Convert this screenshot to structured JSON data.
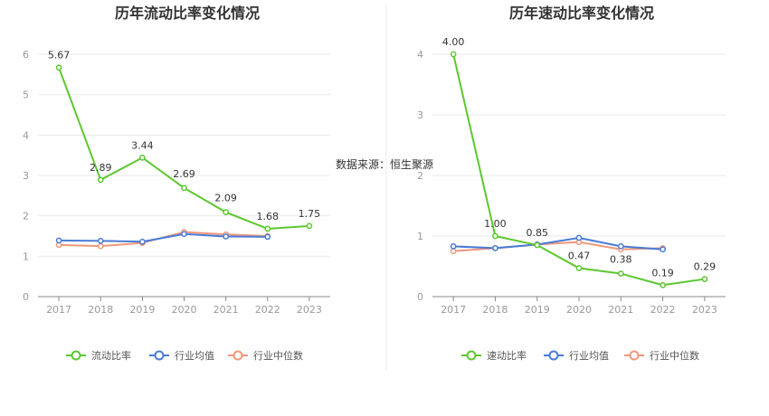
{
  "source_text": "数据来源：恒生聚源",
  "chart_data": [
    {
      "type": "line",
      "title": "历年流动比率变化情况",
      "categories": [
        "2017",
        "2018",
        "2019",
        "2020",
        "2021",
        "2022",
        "2023"
      ],
      "ylim": [
        0,
        6
      ],
      "yticks": [
        "0",
        "1",
        "2",
        "3",
        "4",
        "5",
        "6"
      ],
      "grid": true,
      "legend_position": "bottom",
      "series": [
        {
          "name": "流动比率",
          "color": "#5dc730",
          "values": [
            5.67,
            2.89,
            3.44,
            2.69,
            2.09,
            1.68,
            1.75
          ],
          "labels": [
            "5.67",
            "2.89",
            "3.44",
            "2.69",
            "2.09",
            "1.68",
            "1.75"
          ]
        },
        {
          "name": "行业均值",
          "color": "#4a7bd8",
          "values": [
            1.39,
            1.38,
            1.36,
            1.55,
            1.49,
            1.48,
            null
          ]
        },
        {
          "name": "行业中位数",
          "color": "#f0977a",
          "values": [
            1.28,
            1.25,
            1.33,
            1.6,
            1.54,
            1.5,
            null
          ]
        }
      ]
    },
    {
      "type": "line",
      "title": "历年速动比率变化情况",
      "categories": [
        "2017",
        "2018",
        "2019",
        "2020",
        "2021",
        "2022",
        "2023"
      ],
      "ylim": [
        0,
        4
      ],
      "yticks": [
        "0",
        "1",
        "2",
        "3",
        "4"
      ],
      "grid": true,
      "legend_position": "bottom",
      "series": [
        {
          "name": "速动比率",
          "color": "#5dc730",
          "values": [
            4.0,
            1.0,
            0.85,
            0.47,
            0.38,
            0.19,
            0.29
          ],
          "labels": [
            "4.00",
            "1.00",
            "0.85",
            "0.47",
            "0.38",
            "0.19",
            "0.29"
          ]
        },
        {
          "name": "行业均值",
          "color": "#4a7bd8",
          "values": [
            0.83,
            0.8,
            0.86,
            0.97,
            0.83,
            0.78,
            null
          ]
        },
        {
          "name": "行业中位数",
          "color": "#f0977a",
          "values": [
            0.75,
            0.8,
            0.86,
            0.9,
            0.78,
            0.8,
            null
          ]
        }
      ]
    }
  ]
}
